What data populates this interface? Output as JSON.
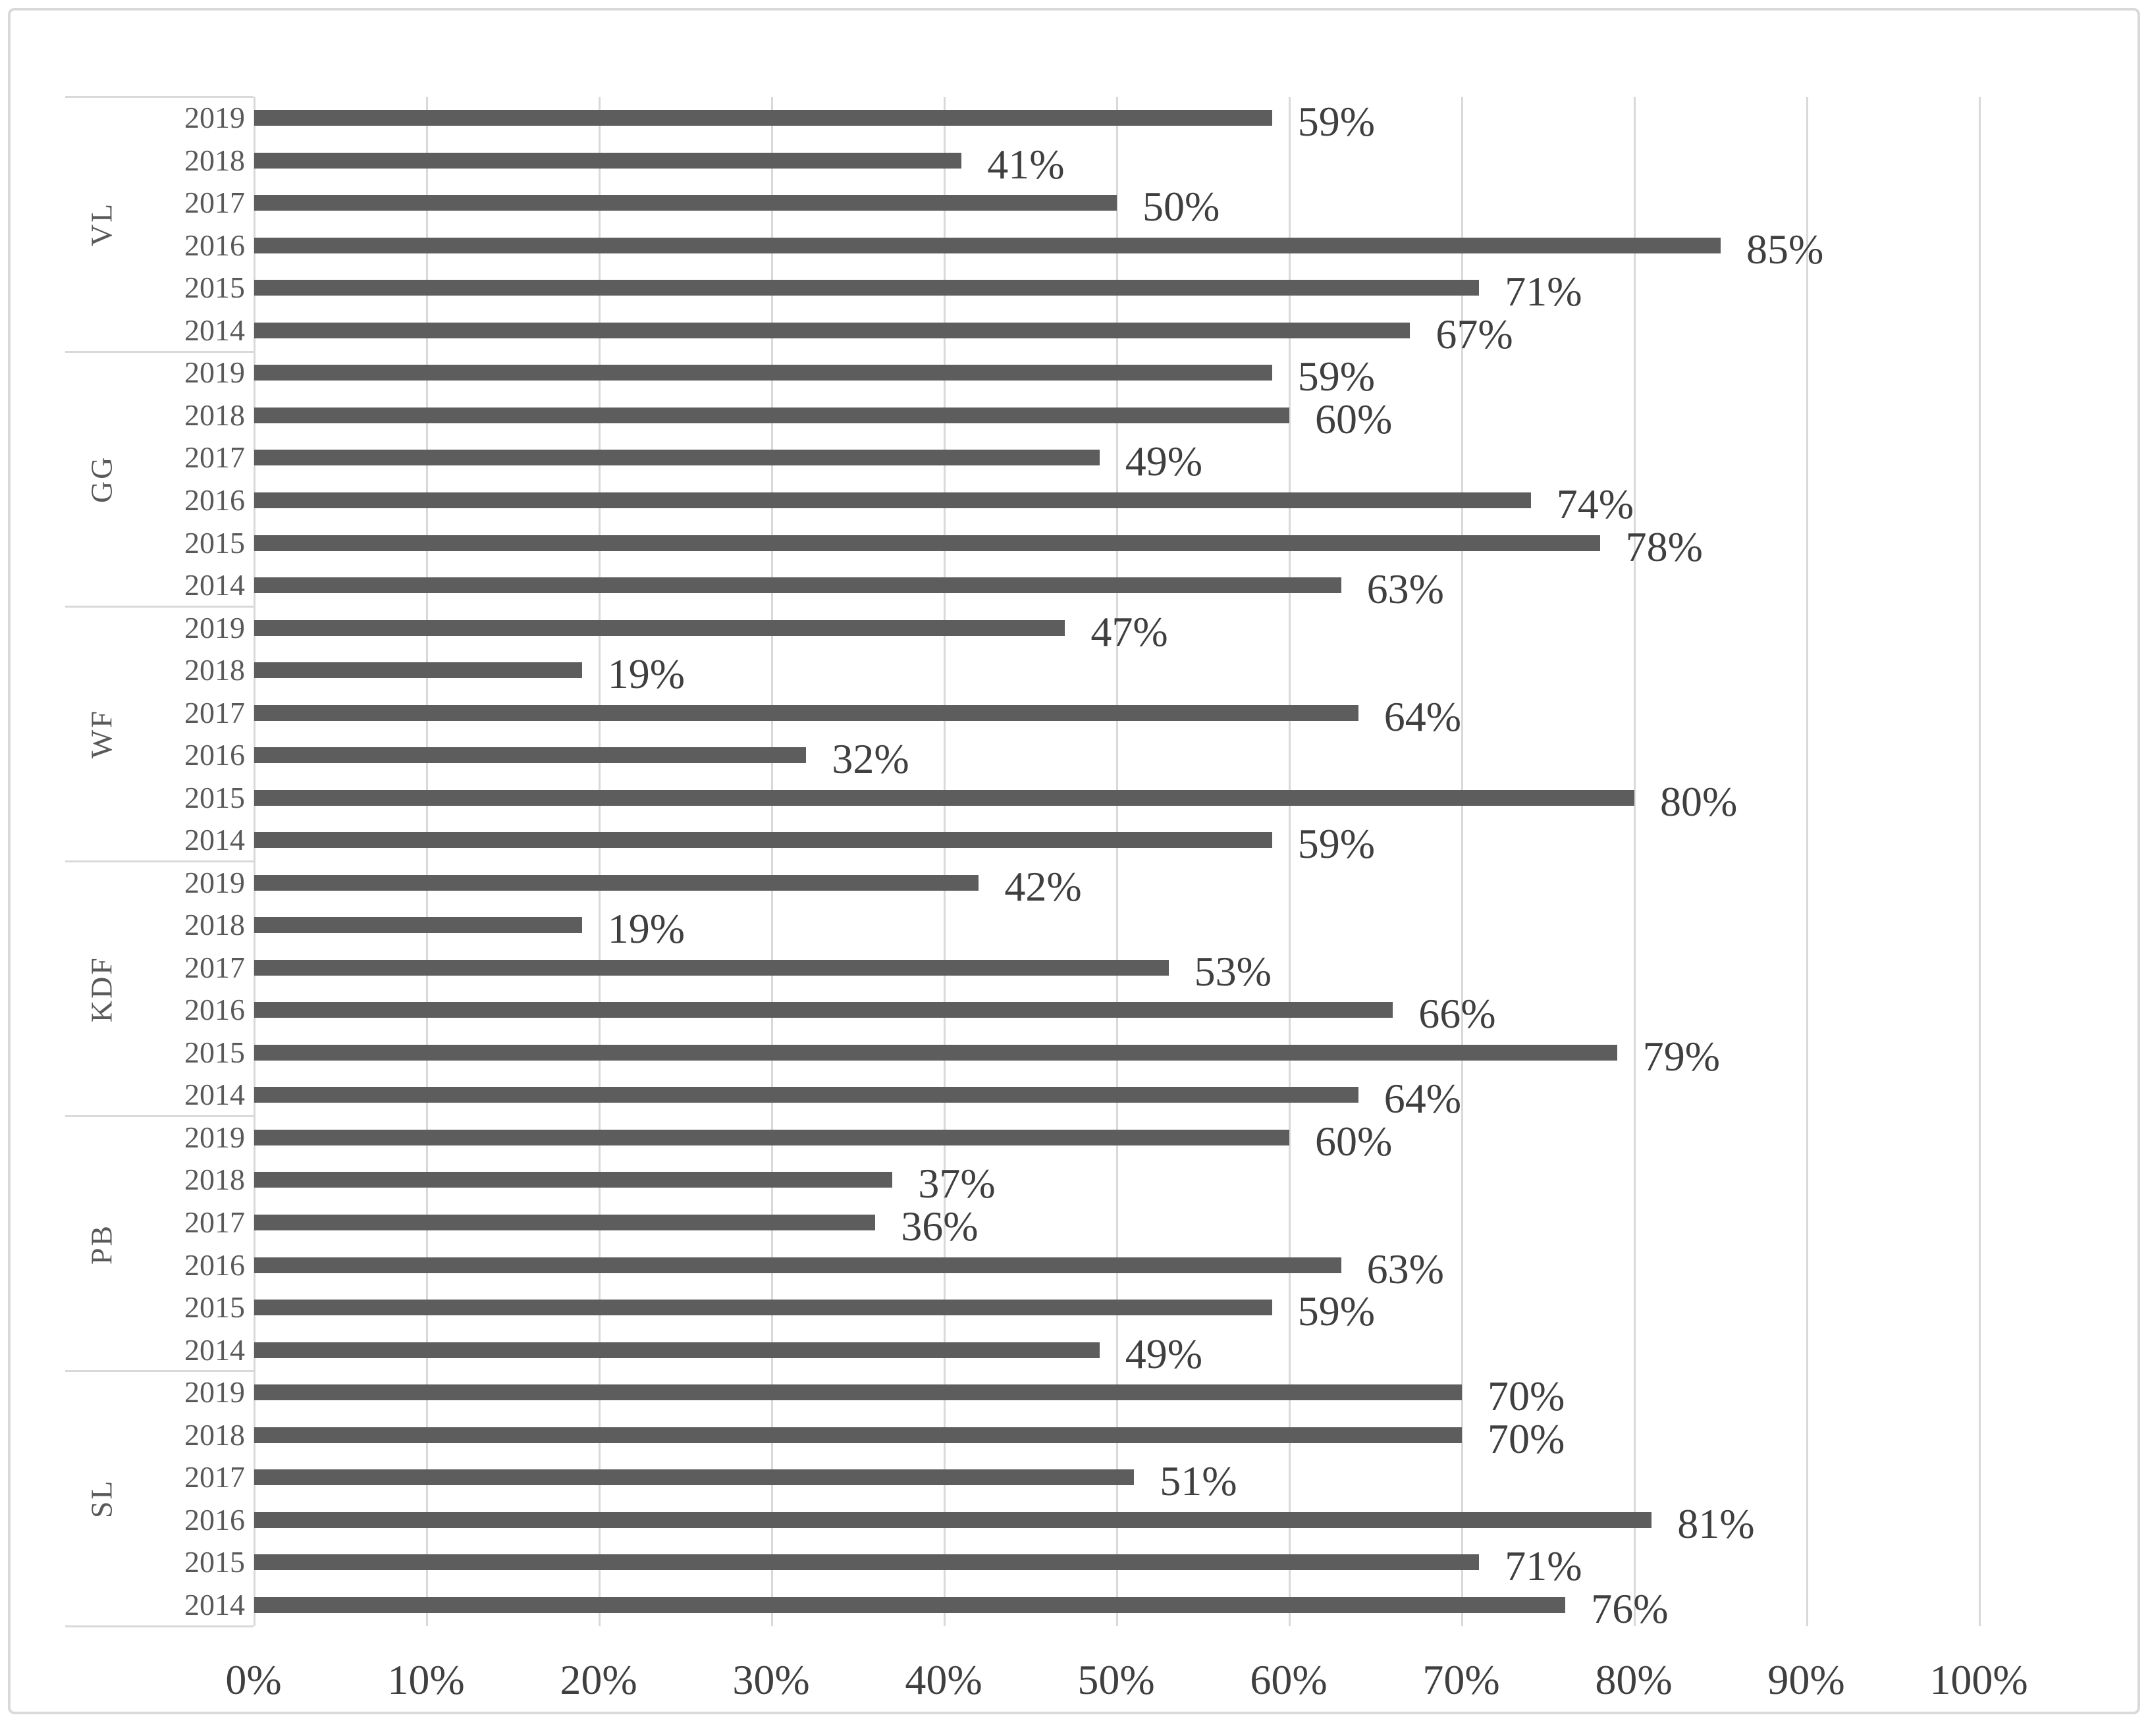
{
  "chart_data": {
    "type": "bar",
    "orientation": "horizontal",
    "title": "",
    "value_suffix": "%",
    "years_order": [
      "2019",
      "2018",
      "2017",
      "2016",
      "2015",
      "2014"
    ],
    "groups": [
      {
        "label": "VL",
        "values": [
          59,
          41,
          50,
          85,
          71,
          67
        ]
      },
      {
        "label": "GG",
        "values": [
          59,
          60,
          49,
          74,
          78,
          63
        ]
      },
      {
        "label": "WF",
        "values": [
          47,
          19,
          64,
          32,
          80,
          59
        ]
      },
      {
        "label": "KDF",
        "values": [
          42,
          19,
          53,
          66,
          79,
          64
        ]
      },
      {
        "label": "PB",
        "values": [
          60,
          37,
          36,
          63,
          59,
          49
        ]
      },
      {
        "label": "SL",
        "values": [
          70,
          70,
          51,
          81,
          71,
          76
        ]
      }
    ],
    "x_axis": {
      "min": 0,
      "max": 100,
      "tick_step": 10,
      "tick_labels": [
        "0%",
        "10%",
        "20%",
        "30%",
        "40%",
        "50%",
        "60%",
        "70%",
        "80%",
        "90%",
        "100%"
      ],
      "grid": true
    },
    "data_labels": {
      "position": "outside-end",
      "labels": {
        "VL": [
          "59%",
          "41%",
          "50%",
          "85%",
          "71%",
          "67%"
        ],
        "GG": [
          "59%",
          "60%",
          "49%",
          "74%",
          "78%",
          "63%"
        ],
        "WF": [
          "47%",
          "19%",
          "64%",
          "32%",
          "80%",
          "59%"
        ],
        "KDF": [
          "42%",
          "19%",
          "53%",
          "66%",
          "79%",
          "64%"
        ],
        "PB": [
          "60%",
          "37%",
          "36%",
          "63%",
          "59%",
          "49%"
        ],
        "SL": [
          "70%",
          "70%",
          "51%",
          "81%",
          "71%",
          "76%"
        ]
      }
    },
    "legend": {
      "visible": false
    },
    "colors": {
      "bar": "#5d5d5d",
      "grid": "#d9d9d9",
      "frame_border": "#d9d9d9",
      "value_text": "#3f3f3f",
      "axis_text": "#3f3f3f",
      "category_text": "#595959"
    }
  }
}
